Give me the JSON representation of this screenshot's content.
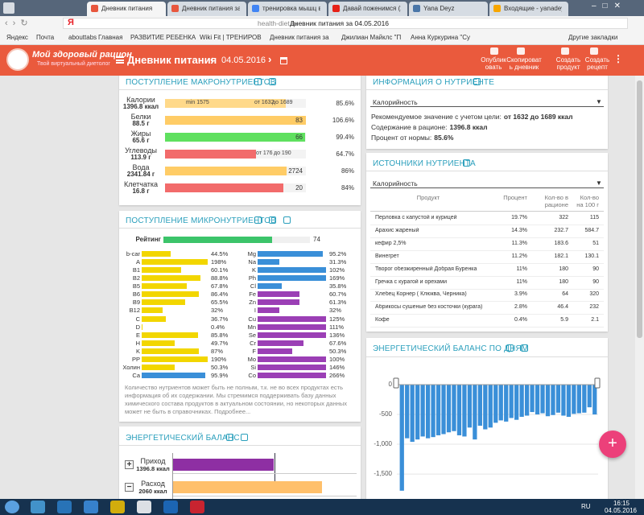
{
  "browser": {
    "tabs": [
      "Дневник питания",
      "Дневник питания за",
      "тренировка мышц вн",
      "Давай поженимся (20",
      "Yana Deyz",
      "Входящие - yanadeyz"
    ],
    "url_host": "health-diet.ru",
    "url_title": "Дневник питания за 04.05.2016",
    "bookmarks": [
      "Яндекс",
      "Почта",
      "abouttabs",
      "Главная",
      "РАЗВИТИЕ РЕБЕНКА",
      "Wiki Fit | ТРЕНИРОВ",
      "Дневник питания за",
      "Джилиан Майклс \"П",
      "Анна Куркурина \"Су"
    ],
    "other_bookmarks": "Другие закладки"
  },
  "site": {
    "logo": "Мой здоровый рацион",
    "tagline": "Твой виртуальный диетолог",
    "page_title": "Дневник питания",
    "date": "04.05.2016",
    "actions": [
      "Опубликовать",
      "Скопировать дневник",
      "Создать продукт",
      "Создать рецепт"
    ]
  },
  "macros": {
    "title": "ПОСТУПЛЕНИЕ МАКРОНУТРИЕНТОВ",
    "rows": [
      {
        "name": "Калории",
        "amount": "1396.8 ккал",
        "value": 85.6,
        "value_label": "85.6%",
        "color": "#ffd98a",
        "markers": [
          "min 1575",
          "от 1632",
          "до 1689"
        ]
      },
      {
        "name": "Белки",
        "amount": "88.5 г",
        "value": 106.6,
        "value_label": "106.6%",
        "color": "#ffcc66",
        "norm": 83
      },
      {
        "name": "Жиры",
        "amount": "65.6 г",
        "value": 99.4,
        "value_label": "99.4%",
        "color": "#5fe05f",
        "norm": 66
      },
      {
        "name": "Углеводы",
        "amount": "113.9 г",
        "value": 64.7,
        "value_label": "64.7%",
        "color": "#f26b6b",
        "markers": [
          "от 176",
          "до 190"
        ]
      },
      {
        "name": "Вода",
        "amount": "2341.84 г",
        "value": 86,
        "value_label": "86%",
        "color": "#ffcc66",
        "norm": 2724
      },
      {
        "name": "Клетчатка",
        "amount": "16.8 г",
        "value": 84,
        "value_label": "84%",
        "color": "#f26b6b",
        "norm": 20
      }
    ]
  },
  "micros": {
    "title": "ПОСТУПЛЕНИЕ МИКРОНУТРИЕНТОВ",
    "rating_label": "Рейтинг",
    "rating": 74,
    "rating_color": "#3cc46a",
    "columns": [
      [
        {
          "name": "b-car",
          "value": 44.5,
          "value_label": "44.5%",
          "color": "#f2d600"
        },
        {
          "name": "A",
          "value": 198,
          "value_label": "198%",
          "color": "#f2d600"
        },
        {
          "name": "B1",
          "value": 60.1,
          "value_label": "60.1%",
          "color": "#f2d600"
        },
        {
          "name": "B2",
          "value": 88.8,
          "value_label": "88.8%",
          "color": "#f2d600"
        },
        {
          "name": "B5",
          "value": 67.8,
          "value_label": "67.8%",
          "color": "#f2d600"
        },
        {
          "name": "B6",
          "value": 86.4,
          "value_label": "86.4%",
          "color": "#f2d600"
        },
        {
          "name": "B9",
          "value": 65.5,
          "value_label": "65.5%",
          "color": "#f2d600"
        },
        {
          "name": "B12",
          "value": 32,
          "value_label": "32%",
          "color": "#f2d600"
        },
        {
          "name": "C",
          "value": 36.7,
          "value_label": "36.7%",
          "color": "#f2d600"
        },
        {
          "name": "D",
          "value": 0.4,
          "value_label": "0.4%",
          "color": "#f2d600"
        },
        {
          "name": "E",
          "value": 85.8,
          "value_label": "85.8%",
          "color": "#f2d600"
        },
        {
          "name": "H",
          "value": 49.7,
          "value_label": "49.7%",
          "color": "#f2d600"
        },
        {
          "name": "K",
          "value": 87,
          "value_label": "87%",
          "color": "#f2d600"
        },
        {
          "name": "PP",
          "value": 190,
          "value_label": "190%",
          "color": "#f2d600"
        },
        {
          "name": "Холин",
          "value": 50.3,
          "value_label": "50.3%",
          "color": "#f2d600"
        },
        {
          "name": "Ca",
          "value": 95.9,
          "value_label": "95.9%",
          "color": "#3a8fd8"
        }
      ],
      [
        {
          "name": "Mg",
          "value": 95.2,
          "value_label": "95.2%",
          "color": "#3a8fd8"
        },
        {
          "name": "Na",
          "value": 31.3,
          "value_label": "31.3%",
          "color": "#3a8fd8"
        },
        {
          "name": "K",
          "value": 102,
          "value_label": "102%",
          "color": "#3a8fd8"
        },
        {
          "name": "Ph",
          "value": 169,
          "value_label": "169%",
          "color": "#3a8fd8"
        },
        {
          "name": "Cl",
          "value": 35.8,
          "value_label": "35.8%",
          "color": "#3a8fd8"
        },
        {
          "name": "Fe",
          "value": 60.7,
          "value_label": "60.7%",
          "color": "#9b3fb5"
        },
        {
          "name": "Zn",
          "value": 61.3,
          "value_label": "61.3%",
          "color": "#9b3fb5"
        },
        {
          "name": "I",
          "value": 32,
          "value_label": "32%",
          "color": "#9b3fb5"
        },
        {
          "name": "Cu",
          "value": 125,
          "value_label": "125%",
          "color": "#9b3fb5"
        },
        {
          "name": "Mn",
          "value": 111,
          "value_label": "111%",
          "color": "#9b3fb5"
        },
        {
          "name": "Se",
          "value": 136,
          "value_label": "136%",
          "color": "#9b3fb5"
        },
        {
          "name": "Cr",
          "value": 67.6,
          "value_label": "67.6%",
          "color": "#9b3fb5"
        },
        {
          "name": "F",
          "value": 50.3,
          "value_label": "50.3%",
          "color": "#9b3fb5"
        },
        {
          "name": "Mo",
          "value": 100,
          "value_label": "100%",
          "color": "#9b3fb5"
        },
        {
          "name": "Si",
          "value": 146,
          "value_label": "146%",
          "color": "#9b3fb5"
        },
        {
          "name": "Co",
          "value": 266,
          "value_label": "266%",
          "color": "#9b3fb5"
        }
      ]
    ],
    "note": "Количество нутриентов может быть не полным, т.к. не во всех продуктах есть информация об их содержании. Мы стремимся поддерживать базу данных химического состава продуктов в актуальном состоянии, но некоторых данных может не быть в справочниках. Подробнее..."
  },
  "energy": {
    "title": "ЭНЕРГЕТИЧЕСКИЙ БАЛАНС",
    "rows": [
      {
        "name": "Приход",
        "value": 1396.8,
        "value_label": "1396.8 ккал",
        "color": "#8e2fa3"
      },
      {
        "name": "Расход",
        "value": 2060,
        "value_label": "2060 ккал",
        "color": "#ffc06b"
      }
    ]
  },
  "nutrient_info": {
    "title": "ИНФОРМАЦИЯ О НУТРИЕНТЕ",
    "selected": "Калорийность",
    "lines": [
      {
        "label": "Рекомендуемое значение с учетом цели:",
        "value": "от 1632 до 1689 ккал"
      },
      {
        "label": "Содержание в рационе:",
        "value": "1396.8 ккал"
      },
      {
        "label": "Процент от нормы:",
        "value": "85.6%"
      }
    ]
  },
  "sources": {
    "title": "ИСТОЧНИКИ НУТРИЕНТА",
    "selected": "Калорийность",
    "columns": [
      "Продукт",
      "Процент",
      "Кол-во в рационе",
      "Кол-во на 100 г"
    ],
    "rows": [
      [
        "Перловка с капустой и курицей",
        "19.7%",
        "322",
        "115"
      ],
      [
        "Арахис жареный",
        "14.3%",
        "232.7",
        "584.7"
      ],
      [
        "кефир 2,5%",
        "11.3%",
        "183.6",
        "51"
      ],
      [
        "Винегрет",
        "11.2%",
        "182.1",
        "130.1"
      ],
      [
        "Творог обезжиренный Добрая Буренка",
        "11%",
        "180",
        "90"
      ],
      [
        "Гречка с курагой и орехами",
        "11%",
        "180",
        "90"
      ],
      [
        "Хлебец Корнер ( Клюква, Черника)",
        "3.9%",
        "64",
        "320"
      ],
      [
        "Абрикосы сушеные без косточки (курага)",
        "2.8%",
        "46.4",
        "232"
      ],
      [
        "Кофе",
        "0.4%",
        "5.9",
        "2.1"
      ]
    ]
  },
  "daily_balance": {
    "type": "bar",
    "title": "ЭНЕРГЕТИЧЕСКИЙ БАЛАНС ПО ДНЯМ",
    "color": "#3a8fd8",
    "values": [
      -1780,
      -900,
      -960,
      -920,
      -870,
      -900,
      -880,
      -850,
      -830,
      -800,
      -780,
      -850,
      -870,
      -720,
      -920,
      -690,
      -750,
      -720,
      -640,
      -600,
      -620,
      -560,
      -590,
      -540,
      -520,
      -460,
      -500,
      -480,
      -530,
      -510,
      -470,
      -520,
      -540,
      -490,
      -480,
      -470,
      -380,
      -500
    ],
    "ylim": [
      -1850,
      100
    ],
    "yticks": [
      0,
      -500,
      {
        "value": -1000,
        "label": "-1,000"
      },
      {
        "value": -1500,
        "label": "-1,500"
      }
    ],
    "grid": true
  },
  "taskbar": {
    "lang": "RU",
    "time": "16:15",
    "date": "04.05.2016"
  }
}
